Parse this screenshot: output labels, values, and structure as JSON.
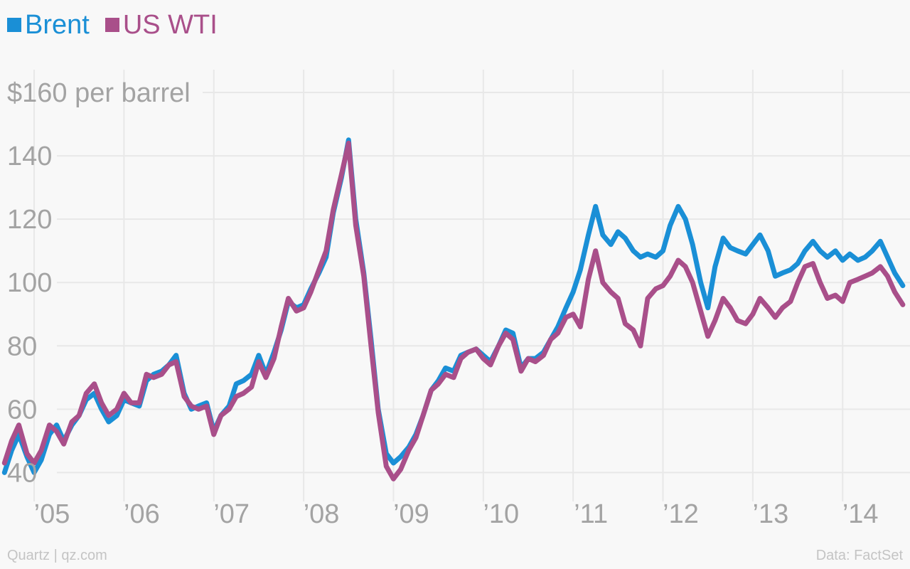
{
  "chart_data": {
    "type": "line",
    "title": "",
    "xlabel": "",
    "ylabel": "",
    "y_top_label": "$160 per barrel",
    "ylim": [
      32,
      160
    ],
    "y_ticks": [
      40,
      60,
      80,
      100,
      120,
      140,
      160
    ],
    "xlim": [
      2004.62,
      2014.75
    ],
    "x_tick_positions": [
      2005,
      2006,
      2007,
      2008,
      2009,
      2010,
      2011,
      2012,
      2013,
      2014
    ],
    "x_tick_labels": [
      "’05",
      "’06",
      "’07",
      "’08",
      "’09",
      "’10",
      "’11",
      "’12",
      "’13",
      "’14"
    ],
    "grid": true,
    "legend_position": "top-left",
    "series": [
      {
        "name": "Brent",
        "color": "#1a8fd6",
        "x": [
          2004.67,
          2004.75,
          2004.83,
          2004.92,
          2005.0,
          2005.08,
          2005.17,
          2005.25,
          2005.33,
          2005.42,
          2005.5,
          2005.58,
          2005.67,
          2005.75,
          2005.83,
          2005.92,
          2006.0,
          2006.08,
          2006.17,
          2006.25,
          2006.33,
          2006.42,
          2006.5,
          2006.58,
          2006.67,
          2006.75,
          2006.83,
          2006.92,
          2007.0,
          2007.08,
          2007.17,
          2007.25,
          2007.33,
          2007.42,
          2007.5,
          2007.58,
          2007.67,
          2007.75,
          2007.83,
          2007.92,
          2008.0,
          2008.08,
          2008.17,
          2008.25,
          2008.33,
          2008.42,
          2008.5,
          2008.58,
          2008.67,
          2008.75,
          2008.83,
          2008.92,
          2009.0,
          2009.08,
          2009.17,
          2009.25,
          2009.33,
          2009.42,
          2009.5,
          2009.58,
          2009.67,
          2009.75,
          2009.83,
          2009.92,
          2010.0,
          2010.08,
          2010.17,
          2010.25,
          2010.33,
          2010.42,
          2010.5,
          2010.58,
          2010.67,
          2010.75,
          2010.83,
          2010.92,
          2011.0,
          2011.08,
          2011.17,
          2011.25,
          2011.33,
          2011.42,
          2011.5,
          2011.58,
          2011.67,
          2011.75,
          2011.83,
          2011.92,
          2012.0,
          2012.08,
          2012.17,
          2012.25,
          2012.33,
          2012.42,
          2012.5,
          2012.58,
          2012.67,
          2012.75,
          2012.83,
          2012.92,
          2013.0,
          2013.08,
          2013.17,
          2013.25,
          2013.33,
          2013.42,
          2013.5,
          2013.58,
          2013.67,
          2013.75,
          2013.83,
          2013.92,
          2014.0,
          2014.08,
          2014.17,
          2014.25,
          2014.33,
          2014.42,
          2014.5,
          2014.58,
          2014.67
        ],
        "values": [
          40,
          47,
          52,
          45,
          40,
          44,
          52,
          55,
          50,
          55,
          58,
          63,
          65,
          60,
          56,
          58,
          63,
          62,
          61,
          69,
          71,
          72,
          74,
          77,
          65,
          60,
          61,
          62,
          53,
          58,
          61,
          68,
          69,
          71,
          77,
          71,
          78,
          85,
          94,
          92,
          93,
          98,
          103,
          108,
          122,
          133,
          145,
          120,
          103,
          82,
          60,
          46,
          43,
          45,
          48,
          52,
          58,
          66,
          69,
          73,
          72,
          77,
          78,
          79,
          77,
          75,
          80,
          85,
          84,
          73,
          76,
          76,
          78,
          82,
          86,
          92,
          97,
          104,
          115,
          124,
          115,
          112,
          116,
          114,
          110,
          108,
          109,
          108,
          110,
          118,
          124,
          120,
          112,
          100,
          92,
          105,
          114,
          111,
          110,
          109,
          112,
          115,
          110,
          102,
          103,
          104,
          106,
          110,
          113,
          110,
          108,
          110,
          107,
          109,
          107,
          108,
          110,
          113,
          108,
          103,
          99
        ]
      },
      {
        "name": "US WTI",
        "color": "#a94f8a",
        "x": [
          2004.67,
          2004.75,
          2004.83,
          2004.92,
          2005.0,
          2005.08,
          2005.17,
          2005.25,
          2005.33,
          2005.42,
          2005.5,
          2005.58,
          2005.67,
          2005.75,
          2005.83,
          2005.92,
          2006.0,
          2006.08,
          2006.17,
          2006.25,
          2006.33,
          2006.42,
          2006.5,
          2006.58,
          2006.67,
          2006.75,
          2006.83,
          2006.92,
          2007.0,
          2007.08,
          2007.17,
          2007.25,
          2007.33,
          2007.42,
          2007.5,
          2007.58,
          2007.67,
          2007.75,
          2007.83,
          2007.92,
          2008.0,
          2008.08,
          2008.17,
          2008.25,
          2008.33,
          2008.42,
          2008.5,
          2008.58,
          2008.67,
          2008.75,
          2008.83,
          2008.92,
          2009.0,
          2009.08,
          2009.17,
          2009.25,
          2009.33,
          2009.42,
          2009.5,
          2009.58,
          2009.67,
          2009.75,
          2009.83,
          2009.92,
          2010.0,
          2010.08,
          2010.17,
          2010.25,
          2010.33,
          2010.42,
          2010.5,
          2010.58,
          2010.67,
          2010.75,
          2010.83,
          2010.92,
          2011.0,
          2011.08,
          2011.17,
          2011.25,
          2011.33,
          2011.42,
          2011.5,
          2011.58,
          2011.67,
          2011.75,
          2011.83,
          2011.92,
          2012.0,
          2012.08,
          2012.17,
          2012.25,
          2012.33,
          2012.42,
          2012.5,
          2012.58,
          2012.67,
          2012.75,
          2012.83,
          2012.92,
          2013.0,
          2013.08,
          2013.17,
          2013.25,
          2013.33,
          2013.42,
          2013.5,
          2013.58,
          2013.67,
          2013.75,
          2013.83,
          2013.92,
          2014.0,
          2014.08,
          2014.17,
          2014.25,
          2014.33,
          2014.42,
          2014.5,
          2014.58,
          2014.67
        ],
        "values": [
          43,
          50,
          55,
          46,
          43,
          47,
          55,
          53,
          49,
          56,
          58,
          65,
          68,
          62,
          58,
          60,
          65,
          62,
          62,
          71,
          70,
          71,
          74,
          75,
          64,
          61,
          60,
          61,
          52,
          58,
          60,
          64,
          65,
          67,
          75,
          70,
          76,
          86,
          95,
          91,
          92,
          97,
          104,
          110,
          123,
          134,
          144,
          118,
          102,
          80,
          59,
          42,
          38,
          41,
          47,
          51,
          58,
          66,
          68,
          71,
          70,
          76,
          78,
          79,
          76,
          74,
          80,
          84,
          82,
          72,
          76,
          75,
          77,
          82,
          84,
          89,
          90,
          86,
          101,
          110,
          100,
          97,
          95,
          87,
          85,
          80,
          95,
          98,
          99,
          102,
          107,
          105,
          100,
          91,
          83,
          88,
          95,
          92,
          88,
          87,
          90,
          95,
          92,
          89,
          92,
          94,
          100,
          105,
          106,
          100,
          95,
          96,
          94,
          100,
          101,
          102,
          103,
          105,
          102,
          97,
          93
        ]
      }
    ]
  },
  "footer": {
    "credit": "Quartz | qz.com",
    "source": "Data: FactSet"
  }
}
